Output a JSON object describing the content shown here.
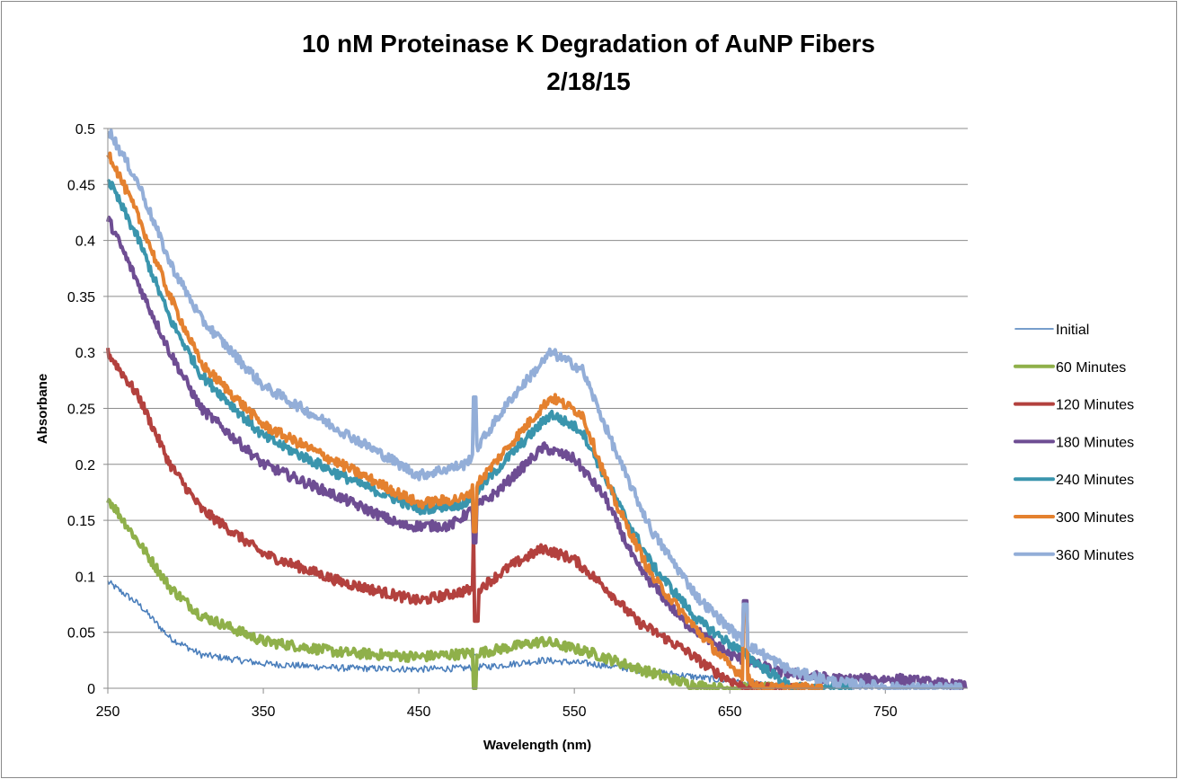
{
  "chart_data": {
    "type": "line",
    "title": "10 nM Proteinase K Degradation of AuNP Fibers",
    "subtitle": "2/18/15",
    "xlabel": "Wavelength (nm)",
    "ylabel": "Absorbane",
    "xlim": [
      250,
      803
    ],
    "ylim": [
      0,
      0.5
    ],
    "xticks": [
      "250",
      "350",
      "450",
      "550",
      "650",
      "750"
    ],
    "xtick_values": [
      250,
      350,
      450,
      550,
      650,
      750
    ],
    "yticks": [
      "0",
      "0.05",
      "0.1",
      "0.15",
      "0.2",
      "0.25",
      "0.3",
      "0.35",
      "0.4",
      "0.45",
      "0.5"
    ],
    "ytick_values": [
      0,
      0.05,
      0.1,
      0.15,
      0.2,
      0.25,
      0.3,
      0.35,
      0.4,
      0.45,
      0.5
    ],
    "grid": "horizontal",
    "legend_position": "right",
    "series": [
      {
        "name": "Initial",
        "color": "#4a7ebb",
        "thin": true,
        "points": [
          [
            250,
            0.095
          ],
          [
            270,
            0.075
          ],
          [
            290,
            0.045
          ],
          [
            310,
            0.03
          ],
          [
            350,
            0.022
          ],
          [
            400,
            0.018
          ],
          [
            450,
            0.017
          ],
          [
            480,
            0.018
          ],
          [
            500,
            0.02
          ],
          [
            530,
            0.025
          ],
          [
            560,
            0.022
          ],
          [
            600,
            0.015
          ],
          [
            640,
            0.008
          ],
          [
            660,
            0.005
          ],
          [
            680,
            0.002
          ],
          [
            700,
            0
          ]
        ],
        "spikes": [
          [
            486,
            0.03
          ],
          [
            660,
            0.075
          ]
        ]
      },
      {
        "name": "60 Minutes",
        "color": "#8fb04a",
        "points": [
          [
            250,
            0.17
          ],
          [
            270,
            0.13
          ],
          [
            290,
            0.09
          ],
          [
            310,
            0.065
          ],
          [
            350,
            0.042
          ],
          [
            400,
            0.032
          ],
          [
            450,
            0.028
          ],
          [
            490,
            0.032
          ],
          [
            530,
            0.042
          ],
          [
            560,
            0.032
          ],
          [
            590,
            0.018
          ],
          [
            620,
            0.005
          ],
          [
            640,
            0
          ]
        ],
        "spikes": [
          [
            486,
            0.0
          ]
        ]
      },
      {
        "name": "120 Minutes",
        "color": "#b3413e",
        "points": [
          [
            250,
            0.3
          ],
          [
            270,
            0.26
          ],
          [
            290,
            0.2
          ],
          [
            310,
            0.16
          ],
          [
            350,
            0.12
          ],
          [
            400,
            0.095
          ],
          [
            450,
            0.078
          ],
          [
            490,
            0.09
          ],
          [
            510,
            0.11
          ],
          [
            530,
            0.125
          ],
          [
            550,
            0.115
          ],
          [
            570,
            0.09
          ],
          [
            590,
            0.06
          ],
          [
            620,
            0.035
          ],
          [
            640,
            0.015
          ],
          [
            660,
            0
          ]
        ],
        "spikes": [
          [
            486,
            0.14
          ],
          [
            487,
            0.06
          ]
        ]
      },
      {
        "name": "180 Minutes",
        "color": "#6e4d93",
        "points": [
          [
            250,
            0.42
          ],
          [
            270,
            0.36
          ],
          [
            290,
            0.3
          ],
          [
            310,
            0.25
          ],
          [
            350,
            0.2
          ],
          [
            400,
            0.17
          ],
          [
            440,
            0.145
          ],
          [
            470,
            0.145
          ],
          [
            500,
            0.175
          ],
          [
            530,
            0.215
          ],
          [
            550,
            0.205
          ],
          [
            570,
            0.17
          ],
          [
            590,
            0.11
          ],
          [
            620,
            0.06
          ],
          [
            650,
            0.03
          ],
          [
            680,
            0.015
          ],
          [
            720,
            0.008
          ],
          [
            760,
            0.008
          ],
          [
            800,
            0.002
          ]
        ],
        "spikes": [
          [
            486,
            0.13
          ],
          [
            660,
            0.078
          ]
        ]
      },
      {
        "name": "240 Minutes",
        "color": "#3a95ad",
        "points": [
          [
            250,
            0.455
          ],
          [
            270,
            0.4
          ],
          [
            290,
            0.33
          ],
          [
            310,
            0.28
          ],
          [
            350,
            0.225
          ],
          [
            400,
            0.19
          ],
          [
            450,
            0.16
          ],
          [
            480,
            0.165
          ],
          [
            510,
            0.21
          ],
          [
            535,
            0.245
          ],
          [
            555,
            0.23
          ],
          [
            580,
            0.16
          ],
          [
            600,
            0.11
          ],
          [
            630,
            0.06
          ],
          [
            660,
            0.03
          ],
          [
            680,
            0.01
          ],
          [
            690,
            0
          ]
        ],
        "spikes": [
          [
            486,
            0.15
          ]
        ]
      },
      {
        "name": "300 Minutes",
        "color": "#e4812f",
        "points": [
          [
            250,
            0.48
          ],
          [
            270,
            0.42
          ],
          [
            290,
            0.35
          ],
          [
            310,
            0.29
          ],
          [
            350,
            0.235
          ],
          [
            400,
            0.2
          ],
          [
            450,
            0.165
          ],
          [
            480,
            0.17
          ],
          [
            510,
            0.22
          ],
          [
            535,
            0.26
          ],
          [
            555,
            0.245
          ],
          [
            575,
            0.17
          ],
          [
            600,
            0.1
          ],
          [
            630,
            0.05
          ],
          [
            650,
            0.02
          ],
          [
            670,
            0
          ]
        ],
        "spikes": [
          [
            486,
            0.14
          ],
          [
            660,
            0.07
          ]
        ]
      },
      {
        "name": "360 Minutes",
        "color": "#93aed8",
        "points": [
          [
            250,
            0.5
          ],
          [
            270,
            0.45
          ],
          [
            290,
            0.38
          ],
          [
            310,
            0.33
          ],
          [
            350,
            0.27
          ],
          [
            400,
            0.23
          ],
          [
            450,
            0.19
          ],
          [
            480,
            0.2
          ],
          [
            510,
            0.26
          ],
          [
            535,
            0.3
          ],
          [
            555,
            0.285
          ],
          [
            580,
            0.2
          ],
          [
            600,
            0.14
          ],
          [
            630,
            0.08
          ],
          [
            660,
            0.04
          ],
          [
            690,
            0.015
          ],
          [
            720,
            0.005
          ],
          [
            760,
            0
          ]
        ],
        "spikes": [
          [
            486,
            0.26
          ],
          [
            660,
            0.075
          ]
        ]
      }
    ]
  }
}
